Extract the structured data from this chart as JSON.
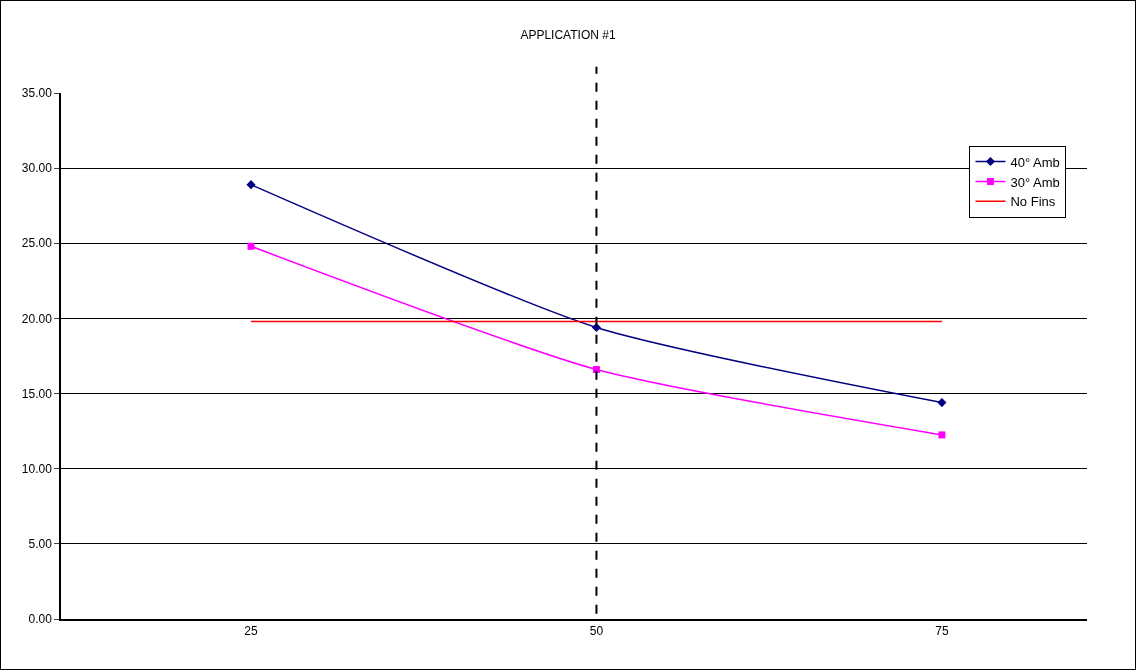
{
  "chart_data": {
    "type": "line",
    "title": "APPLICATION #1",
    "categories": [
      "25",
      "50",
      "75"
    ],
    "series": [
      {
        "name": "40° Amb",
        "color": "#000080",
        "values": [
          28.9,
          19.4,
          14.4
        ],
        "marker": "diamond"
      },
      {
        "name": "30° Amb",
        "color": "#ff00ff",
        "values": [
          24.8,
          16.6,
          12.25
        ],
        "marker": "square"
      },
      {
        "name": "No Fins",
        "color": "#ff0000",
        "values": [
          19.8,
          19.8,
          19.8
        ],
        "marker": "none"
      }
    ],
    "ylim": [
      0,
      35
    ],
    "yticks": [
      {
        "value": 0,
        "label": "0.00"
      },
      {
        "value": 5,
        "label": "5.00"
      },
      {
        "value": 10,
        "label": "10.00"
      },
      {
        "value": 15,
        "label": "15.00"
      },
      {
        "value": 20,
        "label": "20.00"
      },
      {
        "value": 25,
        "label": "25.00"
      },
      {
        "value": 30,
        "label": "30.00"
      },
      {
        "value": 35,
        "label": "35.00"
      }
    ],
    "ref_lines": [
      {
        "axis": "x",
        "value": "50",
        "color": "#000000",
        "line_style": "dashed"
      }
    ],
    "grid": "y",
    "legend": "top right",
    "line_style": "solid"
  }
}
